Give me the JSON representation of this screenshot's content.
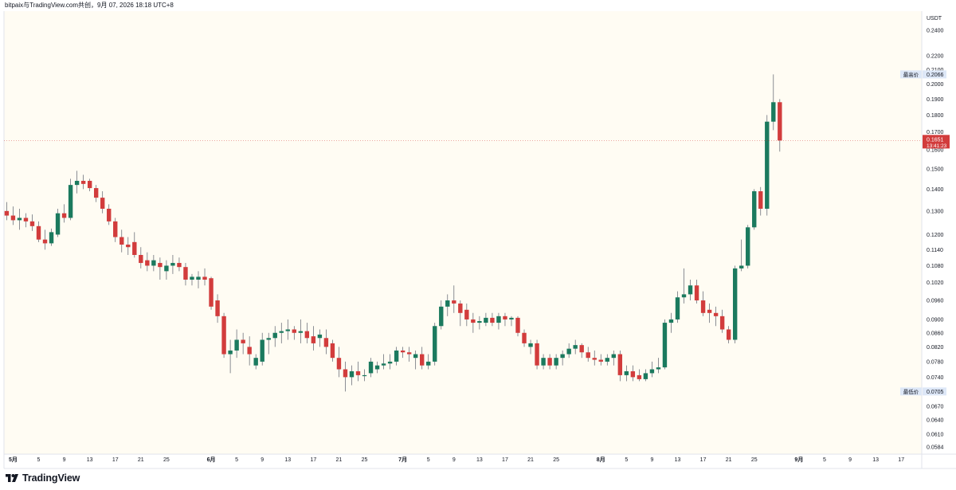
{
  "header": {
    "title": "bitpaix与TradingView.com共创，9月 07, 2026 18:18 UTC+8"
  },
  "footer": {
    "brand": "TradingView"
  },
  "colors": {
    "up": "#1b7a5e",
    "down": "#d23c3c",
    "background": "#fffcf3",
    "last_price_bg": "#d23c3c",
    "high_low_badge": "#dde7f7"
  },
  "chart_data": {
    "type": "candlestick",
    "currency": "USDT",
    "y_scale": "log",
    "ylim": [
      0.057,
      0.256
    ],
    "y_ticks": [
      "0.2400",
      "0.2200",
      "0.2100",
      "0.2000",
      "0.1900",
      "0.1800",
      "0.1700",
      "0.1600",
      "0.1500",
      "0.1400",
      "0.1300",
      "0.1200",
      "0.1140",
      "0.1080",
      "0.1020",
      "0.0960",
      "0.0900",
      "0.0860",
      "0.0820",
      "0.0780",
      "0.0740",
      "0.0705",
      "0.0670",
      "0.0640",
      "0.0610",
      "0.0584"
    ],
    "x_ticks": [
      {
        "label": "5月",
        "date": "2026-05-01",
        "bold": true
      },
      {
        "label": "5",
        "date": "2026-05-05"
      },
      {
        "label": "9",
        "date": "2026-05-09"
      },
      {
        "label": "13",
        "date": "2026-05-13"
      },
      {
        "label": "17",
        "date": "2026-05-17"
      },
      {
        "label": "21",
        "date": "2026-05-21"
      },
      {
        "label": "25",
        "date": "2026-05-25"
      },
      {
        "label": "6月",
        "date": "2026-06-01",
        "bold": true
      },
      {
        "label": "5",
        "date": "2026-06-05"
      },
      {
        "label": "9",
        "date": "2026-06-09"
      },
      {
        "label": "13",
        "date": "2026-06-13"
      },
      {
        "label": "17",
        "date": "2026-06-17"
      },
      {
        "label": "21",
        "date": "2026-06-21"
      },
      {
        "label": "25",
        "date": "2026-06-25"
      },
      {
        "label": "7月",
        "date": "2026-07-01",
        "bold": true
      },
      {
        "label": "5",
        "date": "2026-07-05"
      },
      {
        "label": "9",
        "date": "2026-07-09"
      },
      {
        "label": "13",
        "date": "2026-07-13"
      },
      {
        "label": "17",
        "date": "2026-07-17"
      },
      {
        "label": "21",
        "date": "2026-07-21"
      },
      {
        "label": "25",
        "date": "2026-07-25"
      },
      {
        "label": "8月",
        "date": "2026-08-01",
        "bold": true
      },
      {
        "label": "5",
        "date": "2026-08-05"
      },
      {
        "label": "9",
        "date": "2026-08-09"
      },
      {
        "label": "13",
        "date": "2026-08-13"
      },
      {
        "label": "17",
        "date": "2026-08-17"
      },
      {
        "label": "21",
        "date": "2026-08-21"
      },
      {
        "label": "25",
        "date": "2026-08-25"
      },
      {
        "label": "9月",
        "date": "2026-09-01",
        "bold": true
      },
      {
        "label": "5",
        "date": "2026-09-05"
      },
      {
        "label": "9",
        "date": "2026-09-09"
      },
      {
        "label": "13",
        "date": "2026-09-13"
      },
      {
        "label": "17",
        "date": "2026-09-17"
      }
    ],
    "markers": {
      "high": {
        "label": "最高价",
        "value": "0.2066"
      },
      "low": {
        "label": "最低价",
        "value": "0.0705"
      },
      "last": {
        "value": "0.1651",
        "countdown": "13:41:23"
      }
    },
    "first_date": "2026-04-30",
    "candles": [
      {
        "o": 0.13,
        "h": 0.134,
        "l": 0.126,
        "c": 0.128
      },
      {
        "o": 0.128,
        "h": 0.132,
        "l": 0.124,
        "c": 0.126
      },
      {
        "o": 0.126,
        "h": 0.131,
        "l": 0.122,
        "c": 0.127
      },
      {
        "o": 0.127,
        "h": 0.129,
        "l": 0.123,
        "c": 0.1255
      },
      {
        "o": 0.1255,
        "h": 0.1285,
        "l": 0.1215,
        "c": 0.1235
      },
      {
        "o": 0.1235,
        "h": 0.1255,
        "l": 0.117,
        "c": 0.118
      },
      {
        "o": 0.118,
        "h": 0.122,
        "l": 0.114,
        "c": 0.1165
      },
      {
        "o": 0.1165,
        "h": 0.1225,
        "l": 0.1155,
        "c": 0.121
      },
      {
        "o": 0.12,
        "h": 0.131,
        "l": 0.119,
        "c": 0.129
      },
      {
        "o": 0.129,
        "h": 0.133,
        "l": 0.125,
        "c": 0.127
      },
      {
        "o": 0.127,
        "h": 0.145,
        "l": 0.126,
        "c": 0.142
      },
      {
        "o": 0.142,
        "h": 0.149,
        "l": 0.138,
        "c": 0.144
      },
      {
        "o": 0.144,
        "h": 0.147,
        "l": 0.14,
        "c": 0.1425
      },
      {
        "o": 0.144,
        "h": 0.145,
        "l": 0.139,
        "c": 0.1405
      },
      {
        "o": 0.1405,
        "h": 0.142,
        "l": 0.134,
        "c": 0.136
      },
      {
        "o": 0.136,
        "h": 0.139,
        "l": 0.129,
        "c": 0.131
      },
      {
        "o": 0.131,
        "h": 0.133,
        "l": 0.124,
        "c": 0.1255
      },
      {
        "o": 0.1255,
        "h": 0.127,
        "l": 0.117,
        "c": 0.119
      },
      {
        "o": 0.119,
        "h": 0.122,
        "l": 0.113,
        "c": 0.116
      },
      {
        "o": 0.116,
        "h": 0.119,
        "l": 0.112,
        "c": 0.115
      },
      {
        "o": 0.117,
        "h": 0.121,
        "l": 0.111,
        "c": 0.112
      },
      {
        "o": 0.112,
        "h": 0.115,
        "l": 0.107,
        "c": 0.109
      },
      {
        "o": 0.11,
        "h": 0.113,
        "l": 0.106,
        "c": 0.108
      },
      {
        "o": 0.108,
        "h": 0.112,
        "l": 0.106,
        "c": 0.11
      },
      {
        "o": 0.109,
        "h": 0.111,
        "l": 0.103,
        "c": 0.1075
      },
      {
        "o": 0.106,
        "h": 0.11,
        "l": 0.103,
        "c": 0.108
      },
      {
        "o": 0.108,
        "h": 0.112,
        "l": 0.105,
        "c": 0.109
      },
      {
        "o": 0.109,
        "h": 0.111,
        "l": 0.106,
        "c": 0.1075
      },
      {
        "o": 0.1075,
        "h": 0.109,
        "l": 0.101,
        "c": 0.103
      },
      {
        "o": 0.103,
        "h": 0.105,
        "l": 0.101,
        "c": 0.104
      },
      {
        "o": 0.103,
        "h": 0.106,
        "l": 0.1,
        "c": 0.104
      },
      {
        "o": 0.104,
        "h": 0.107,
        "l": 0.101,
        "c": 0.103
      },
      {
        "o": 0.1035,
        "h": 0.104,
        "l": 0.093,
        "c": 0.094
      },
      {
        "o": 0.096,
        "h": 0.098,
        "l": 0.089,
        "c": 0.091
      },
      {
        "o": 0.091,
        "h": 0.092,
        "l": 0.079,
        "c": 0.08
      },
      {
        "o": 0.08,
        "h": 0.084,
        "l": 0.075,
        "c": 0.081
      },
      {
        "o": 0.081,
        "h": 0.087,
        "l": 0.079,
        "c": 0.084
      },
      {
        "o": 0.084,
        "h": 0.086,
        "l": 0.08,
        "c": 0.083
      },
      {
        "o": 0.082,
        "h": 0.085,
        "l": 0.077,
        "c": 0.08
      },
      {
        "o": 0.077,
        "h": 0.08,
        "l": 0.076,
        "c": 0.079
      },
      {
        "o": 0.078,
        "h": 0.086,
        "l": 0.077,
        "c": 0.084
      },
      {
        "o": 0.084,
        "h": 0.086,
        "l": 0.08,
        "c": 0.0845
      },
      {
        "o": 0.0845,
        "h": 0.088,
        "l": 0.082,
        "c": 0.086
      },
      {
        "o": 0.086,
        "h": 0.089,
        "l": 0.083,
        "c": 0.0865
      },
      {
        "o": 0.0865,
        "h": 0.09,
        "l": 0.084,
        "c": 0.087
      },
      {
        "o": 0.087,
        "h": 0.088,
        "l": 0.084,
        "c": 0.086
      },
      {
        "o": 0.086,
        "h": 0.09,
        "l": 0.083,
        "c": 0.0865
      },
      {
        "o": 0.0865,
        "h": 0.089,
        "l": 0.083,
        "c": 0.0845
      },
      {
        "o": 0.085,
        "h": 0.088,
        "l": 0.081,
        "c": 0.083
      },
      {
        "o": 0.0845,
        "h": 0.087,
        "l": 0.082,
        "c": 0.0855
      },
      {
        "o": 0.0845,
        "h": 0.087,
        "l": 0.08,
        "c": 0.082
      },
      {
        "o": 0.083,
        "h": 0.084,
        "l": 0.078,
        "c": 0.079
      },
      {
        "o": 0.079,
        "h": 0.082,
        "l": 0.074,
        "c": 0.076
      },
      {
        "o": 0.076,
        "h": 0.078,
        "l": 0.0705,
        "c": 0.074
      },
      {
        "o": 0.074,
        "h": 0.077,
        "l": 0.072,
        "c": 0.0755
      },
      {
        "o": 0.0755,
        "h": 0.078,
        "l": 0.073,
        "c": 0.0745
      },
      {
        "o": 0.0745,
        "h": 0.076,
        "l": 0.073,
        "c": 0.0745
      },
      {
        "o": 0.075,
        "h": 0.079,
        "l": 0.074,
        "c": 0.078
      },
      {
        "o": 0.076,
        "h": 0.078,
        "l": 0.075,
        "c": 0.077
      },
      {
        "o": 0.077,
        "h": 0.08,
        "l": 0.076,
        "c": 0.0775
      },
      {
        "o": 0.0775,
        "h": 0.08,
        "l": 0.076,
        "c": 0.078
      },
      {
        "o": 0.078,
        "h": 0.082,
        "l": 0.077,
        "c": 0.081
      },
      {
        "o": 0.081,
        "h": 0.082,
        "l": 0.079,
        "c": 0.0805
      },
      {
        "o": 0.0805,
        "h": 0.082,
        "l": 0.078,
        "c": 0.08
      },
      {
        "o": 0.079,
        "h": 0.081,
        "l": 0.076,
        "c": 0.08
      },
      {
        "o": 0.08,
        "h": 0.082,
        "l": 0.076,
        "c": 0.077
      },
      {
        "o": 0.077,
        "h": 0.08,
        "l": 0.076,
        "c": 0.078
      },
      {
        "o": 0.078,
        "h": 0.089,
        "l": 0.077,
        "c": 0.088
      },
      {
        "o": 0.088,
        "h": 0.096,
        "l": 0.087,
        "c": 0.094
      },
      {
        "o": 0.094,
        "h": 0.098,
        "l": 0.091,
        "c": 0.096
      },
      {
        "o": 0.096,
        "h": 0.101,
        "l": 0.092,
        "c": 0.095
      },
      {
        "o": 0.095,
        "h": 0.096,
        "l": 0.088,
        "c": 0.092
      },
      {
        "o": 0.093,
        "h": 0.095,
        "l": 0.088,
        "c": 0.09
      },
      {
        "o": 0.09,
        "h": 0.092,
        "l": 0.086,
        "c": 0.089
      },
      {
        "o": 0.089,
        "h": 0.091,
        "l": 0.087,
        "c": 0.0895
      },
      {
        "o": 0.089,
        "h": 0.092,
        "l": 0.088,
        "c": 0.0905
      },
      {
        "o": 0.0905,
        "h": 0.092,
        "l": 0.088,
        "c": 0.089
      },
      {
        "o": 0.089,
        "h": 0.092,
        "l": 0.087,
        "c": 0.091
      },
      {
        "o": 0.091,
        "h": 0.092,
        "l": 0.088,
        "c": 0.09
      },
      {
        "o": 0.09,
        "h": 0.091,
        "l": 0.088,
        "c": 0.0905
      },
      {
        "o": 0.0905,
        "h": 0.091,
        "l": 0.085,
        "c": 0.086
      },
      {
        "o": 0.086,
        "h": 0.087,
        "l": 0.082,
        "c": 0.083
      },
      {
        "o": 0.082,
        "h": 0.084,
        "l": 0.08,
        "c": 0.083
      },
      {
        "o": 0.083,
        "h": 0.084,
        "l": 0.076,
        "c": 0.077
      },
      {
        "o": 0.077,
        "h": 0.08,
        "l": 0.076,
        "c": 0.079
      },
      {
        "o": 0.079,
        "h": 0.08,
        "l": 0.076,
        "c": 0.077
      },
      {
        "o": 0.077,
        "h": 0.08,
        "l": 0.076,
        "c": 0.079
      },
      {
        "o": 0.079,
        "h": 0.081,
        "l": 0.077,
        "c": 0.08
      },
      {
        "o": 0.08,
        "h": 0.083,
        "l": 0.079,
        "c": 0.0815
      },
      {
        "o": 0.0815,
        "h": 0.084,
        "l": 0.08,
        "c": 0.0825
      },
      {
        "o": 0.0825,
        "h": 0.083,
        "l": 0.079,
        "c": 0.0805
      },
      {
        "o": 0.0805,
        "h": 0.082,
        "l": 0.078,
        "c": 0.079
      },
      {
        "o": 0.079,
        "h": 0.081,
        "l": 0.077,
        "c": 0.0785
      },
      {
        "o": 0.0785,
        "h": 0.08,
        "l": 0.077,
        "c": 0.078
      },
      {
        "o": 0.078,
        "h": 0.08,
        "l": 0.077,
        "c": 0.079
      },
      {
        "o": 0.079,
        "h": 0.081,
        "l": 0.077,
        "c": 0.08
      },
      {
        "o": 0.08,
        "h": 0.081,
        "l": 0.073,
        "c": 0.0745
      },
      {
        "o": 0.0745,
        "h": 0.077,
        "l": 0.073,
        "c": 0.0755
      },
      {
        "o": 0.0755,
        "h": 0.077,
        "l": 0.073,
        "c": 0.074
      },
      {
        "o": 0.0745,
        "h": 0.076,
        "l": 0.073,
        "c": 0.0735
      },
      {
        "o": 0.0735,
        "h": 0.076,
        "l": 0.073,
        "c": 0.075
      },
      {
        "o": 0.075,
        "h": 0.078,
        "l": 0.074,
        "c": 0.076
      },
      {
        "o": 0.076,
        "h": 0.079,
        "l": 0.075,
        "c": 0.0765
      },
      {
        "o": 0.0765,
        "h": 0.09,
        "l": 0.076,
        "c": 0.089
      },
      {
        "o": 0.089,
        "h": 0.092,
        "l": 0.086,
        "c": 0.09
      },
      {
        "o": 0.09,
        "h": 0.099,
        "l": 0.089,
        "c": 0.097
      },
      {
        "o": 0.097,
        "h": 0.107,
        "l": 0.095,
        "c": 0.098
      },
      {
        "o": 0.098,
        "h": 0.103,
        "l": 0.096,
        "c": 0.101
      },
      {
        "o": 0.101,
        "h": 0.103,
        "l": 0.095,
        "c": 0.096
      },
      {
        "o": 0.096,
        "h": 0.099,
        "l": 0.091,
        "c": 0.092
      },
      {
        "o": 0.093,
        "h": 0.095,
        "l": 0.089,
        "c": 0.092
      },
      {
        "o": 0.092,
        "h": 0.094,
        "l": 0.088,
        "c": 0.091
      },
      {
        "o": 0.091,
        "h": 0.093,
        "l": 0.086,
        "c": 0.087
      },
      {
        "o": 0.087,
        "h": 0.088,
        "l": 0.083,
        "c": 0.084
      },
      {
        "o": 0.084,
        "h": 0.108,
        "l": 0.083,
        "c": 0.107
      },
      {
        "o": 0.107,
        "h": 0.118,
        "l": 0.106,
        "c": 0.108
      },
      {
        "o": 0.108,
        "h": 0.124,
        "l": 0.107,
        "c": 0.123
      },
      {
        "o": 0.123,
        "h": 0.14,
        "l": 0.122,
        "c": 0.139
      },
      {
        "o": 0.139,
        "h": 0.141,
        "l": 0.128,
        "c": 0.131
      },
      {
        "o": 0.131,
        "h": 0.18,
        "l": 0.128,
        "c": 0.176
      },
      {
        "o": 0.176,
        "h": 0.2066,
        "l": 0.171,
        "c": 0.188
      },
      {
        "o": 0.188,
        "h": 0.19,
        "l": 0.159,
        "c": 0.1651
      }
    ]
  }
}
